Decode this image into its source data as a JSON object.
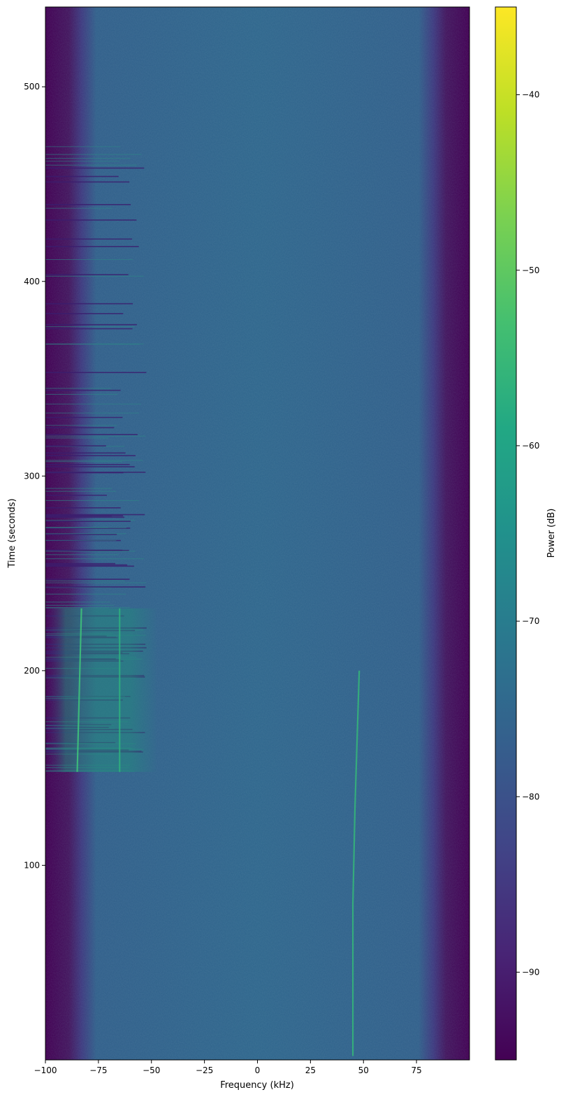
{
  "chart_data": {
    "type": "heatmap",
    "title": "",
    "xlabel": "Frequency (kHz)",
    "ylabel": "Time (seconds)",
    "xlim": [
      -100,
      100
    ],
    "ylim": [
      0,
      541
    ],
    "x_ticks": [
      -100,
      -75,
      -50,
      -25,
      0,
      25,
      50,
      75
    ],
    "x_tick_labels": [
      "−100",
      "−75",
      "−50",
      "−25",
      "0",
      "25",
      "50",
      "75"
    ],
    "y_ticks": [
      100,
      200,
      300,
      400,
      500
    ],
    "y_tick_labels": [
      "100",
      "200",
      "300",
      "400",
      "500"
    ],
    "colormap": "viridis",
    "colorbar": {
      "label": "Power (dB)",
      "range": [
        -95,
        -35
      ],
      "ticks": [
        -90,
        -80,
        -70,
        -60,
        -50,
        -40
      ],
      "tick_labels": [
        "−90",
        "−80",
        "−70",
        "−60",
        "−50",
        "−40"
      ]
    },
    "background_level_db": -77,
    "band_edge_level_db": -94,
    "passband_khz": [
      -88,
      86
    ],
    "features": {
      "burst_region": {
        "freq_khz": [
          -100,
          -47
        ],
        "time_s": [
          148,
          232
        ],
        "level_db": -68
      },
      "interference_time_s": [
        148,
        470
      ],
      "interference_freq_khz": [
        -100,
        -52
      ],
      "carrier_lines": [
        {
          "name": "",
          "points": [
            [
              -83,
              232
            ],
            [
              -85,
              148
            ]
          ],
          "level_db": -58
        },
        {
          "name": "",
          "points": [
            [
              -65,
              232
            ],
            [
              -65,
              148
            ]
          ],
          "level_db": -63
        },
        {
          "name": "",
          "points": [
            [
              48,
              200
            ],
            [
              46,
              130
            ],
            [
              45,
              80
            ],
            [
              45,
              2
            ]
          ],
          "level_db": -62
        }
      ]
    }
  }
}
